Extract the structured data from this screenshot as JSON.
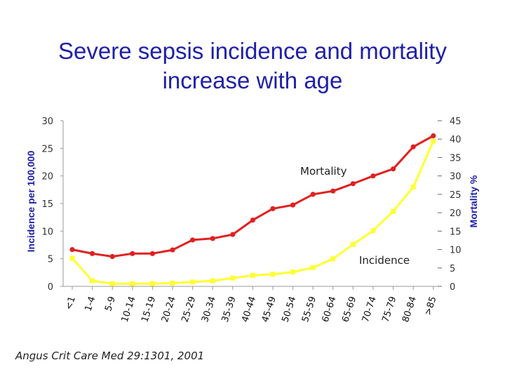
{
  "title": {
    "line1": "Severe sepsis incidence and mortality",
    "line2": "increase with age"
  },
  "citation": "Angus Crit Care Med 29:1301, 2001",
  "colors": {
    "mortality": "#e02020",
    "incidence": "#ffff33",
    "title": "#1f1fa8"
  },
  "chart_data": {
    "type": "line",
    "categories": [
      "<1",
      "1-4",
      "5-9",
      "10-14",
      "15-19",
      "20-24",
      "25-29",
      "30-34",
      "35-39",
      "40-44",
      "45-49",
      "50-54",
      "55-59",
      "60-64",
      "65-69",
      "70-74",
      "75-79",
      "80-84",
      ">85"
    ],
    "y_left": {
      "label": "Incidence per 100,000",
      "range": [
        0,
        30
      ],
      "ticks": [
        "0",
        "5",
        "10",
        "15",
        "20",
        "25",
        "30"
      ]
    },
    "y_right": {
      "label": "Mortality %",
      "range": [
        0,
        45
      ],
      "ticks": [
        "0",
        "5",
        "10",
        "15",
        "20",
        "25",
        "30",
        "35",
        "40",
        "45"
      ]
    },
    "series": [
      {
        "name": "Mortality",
        "axis": "right",
        "color": "#e02020",
        "values": [
          10,
          8.9,
          8.1,
          8.9,
          8.9,
          9.9,
          12.6,
          13,
          14.1,
          18,
          21.1,
          22.1,
          25,
          25.9,
          27.9,
          30,
          31.9,
          37.9,
          40.9
        ]
      },
      {
        "name": "Incidence",
        "axis": "left",
        "color": "#ffff33",
        "values": [
          5.1,
          1,
          0.5,
          0.5,
          0.5,
          0.6,
          0.8,
          1,
          1.5,
          2,
          2.2,
          2.6,
          3.4,
          5,
          7.6,
          10.1,
          13.6,
          18,
          26.3
        ]
      }
    ],
    "annotations": [
      "Mortality",
      "Incidence"
    ]
  }
}
